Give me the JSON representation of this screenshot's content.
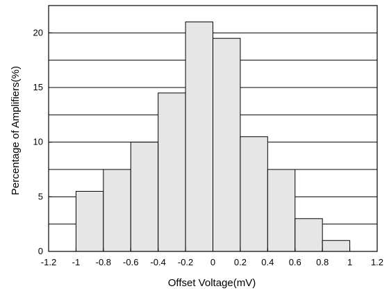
{
  "chart_data": {
    "type": "bar",
    "title": "",
    "xlabel": "Offset Voltage(mV)",
    "ylabel": "Percentage of Amplifiers(%)",
    "xlim": [
      -1.2,
      1.2
    ],
    "ylim": [
      0,
      22.5
    ],
    "xticks": [
      "-1.2",
      "-1",
      "-0.8",
      "-0.6",
      "-0.4",
      "-0.2",
      "0",
      "0.2",
      "0.4",
      "0.6",
      "0.8",
      "1",
      "1.2"
    ],
    "yticks": [
      "0",
      "5",
      "10",
      "15",
      "20"
    ],
    "grid": "horizontal",
    "bar_color": "#e6e6e6",
    "bins": [
      {
        "x0": -1.0,
        "x1": -0.8,
        "value": 5.5
      },
      {
        "x0": -0.8,
        "x1": -0.6,
        "value": 7.5
      },
      {
        "x0": -0.6,
        "x1": -0.4,
        "value": 10
      },
      {
        "x0": -0.4,
        "x1": -0.2,
        "value": 14.5
      },
      {
        "x0": -0.2,
        "x1": 0.0,
        "value": 21
      },
      {
        "x0": 0.0,
        "x1": 0.2,
        "value": 19.5
      },
      {
        "x0": 0.2,
        "x1": 0.4,
        "value": 10.5
      },
      {
        "x0": 0.4,
        "x1": 0.6,
        "value": 7.5
      },
      {
        "x0": 0.6,
        "x1": 0.8,
        "value": 3
      },
      {
        "x0": 0.8,
        "x1": 1.0,
        "value": 1
      }
    ]
  }
}
